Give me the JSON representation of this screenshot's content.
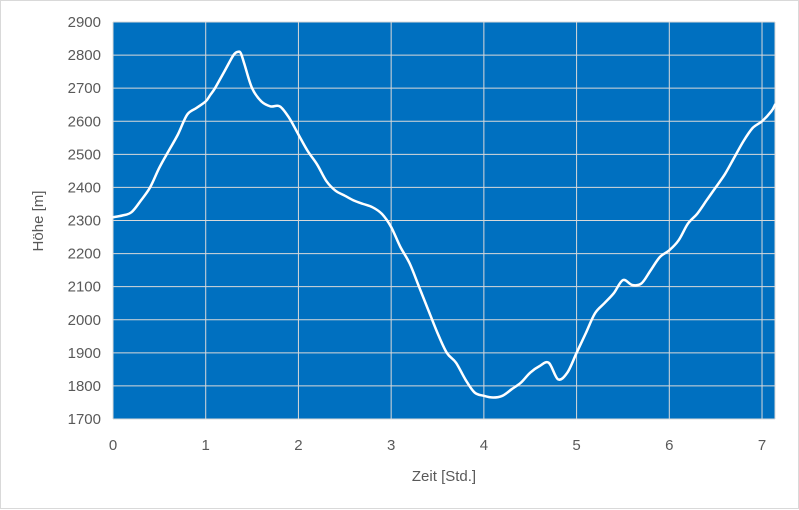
{
  "chart_data": {
    "type": "line",
    "xlabel": "Zeit [Std.]",
    "ylabel": "Höhe [m]",
    "xlim": [
      0,
      7.14
    ],
    "ylim": [
      1700,
      2900
    ],
    "x_ticks": [
      0,
      1,
      2,
      3,
      4,
      5,
      6,
      7
    ],
    "y_ticks": [
      1700,
      1800,
      1900,
      2000,
      2100,
      2200,
      2300,
      2400,
      2500,
      2600,
      2700,
      2800,
      2900
    ],
    "grid": true,
    "legend": "none",
    "colors": {
      "plot_background": "#0070c0",
      "line": "#ffffff",
      "grid": "#d9d9d9",
      "text": "#595959"
    },
    "series": [
      {
        "x": [
          0,
          0.1,
          0.2,
          0.3,
          0.4,
          0.5,
          0.6,
          0.7,
          0.8,
          0.9,
          1.0,
          1.05,
          1.1,
          1.2,
          1.3,
          1.35,
          1.38,
          1.42,
          1.5,
          1.6,
          1.7,
          1.8,
          1.9,
          2.0,
          2.1,
          2.2,
          2.3,
          2.4,
          2.5,
          2.6,
          2.7,
          2.8,
          2.9,
          3.0,
          3.1,
          3.2,
          3.3,
          3.4,
          3.5,
          3.6,
          3.7,
          3.8,
          3.9,
          4.0,
          4.1,
          4.2,
          4.3,
          4.4,
          4.5,
          4.6,
          4.7,
          4.8,
          4.9,
          5.0,
          5.1,
          5.2,
          5.3,
          5.4,
          5.5,
          5.6,
          5.7,
          5.8,
          5.9,
          6.0,
          6.1,
          6.2,
          6.3,
          6.4,
          6.5,
          6.6,
          6.7,
          6.8,
          6.9,
          7.0,
          7.1,
          7.14
        ],
        "y": [
          2310,
          2315,
          2325,
          2360,
          2400,
          2460,
          2510,
          2560,
          2620,
          2640,
          2660,
          2680,
          2700,
          2750,
          2800,
          2810,
          2805,
          2770,
          2700,
          2660,
          2645,
          2645,
          2610,
          2560,
          2510,
          2470,
          2420,
          2390,
          2375,
          2360,
          2350,
          2340,
          2320,
          2280,
          2220,
          2170,
          2100,
          2030,
          1960,
          1900,
          1870,
          1820,
          1780,
          1770,
          1765,
          1770,
          1790,
          1810,
          1840,
          1860,
          1870,
          1820,
          1840,
          1900,
          1960,
          2020,
          2050,
          2080,
          2120,
          2105,
          2110,
          2150,
          2190,
          2210,
          2240,
          2290,
          2320,
          2360,
          2400,
          2440,
          2490,
          2540,
          2580,
          2600,
          2630,
          2650
        ]
      }
    ]
  }
}
